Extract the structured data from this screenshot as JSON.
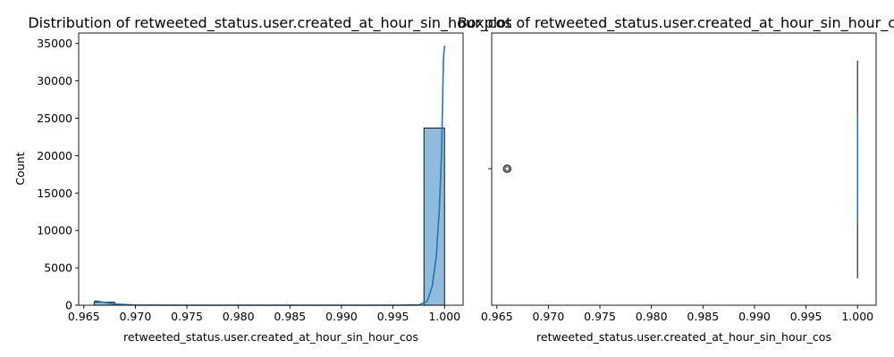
{
  "chart_data": [
    {
      "type": "histogram",
      "title": "Distribution of retweeted_status.user.created_at_hour_sin_hour_cos",
      "xlabel": "retweeted_status.user.created_at_hour_sin_hour_cos",
      "ylabel": "Count",
      "xlim": [
        0.9645,
        1.0018
      ],
      "ylim": [
        0,
        36400
      ],
      "xticks": [
        0.965,
        0.97,
        0.975,
        0.98,
        0.985,
        0.99,
        0.995,
        1.0
      ],
      "xtick_labels": [
        "0.965",
        "0.970",
        "0.975",
        "0.980",
        "0.985",
        "0.990",
        "0.995",
        "1.000"
      ],
      "yticks": [
        0,
        5000,
        10000,
        15000,
        20000,
        25000,
        30000,
        35000
      ],
      "ytick_labels": [
        "0",
        "5000",
        "10000",
        "15000",
        "20000",
        "25000",
        "30000",
        "35000"
      ],
      "bins": [
        {
          "x0": 0.966,
          "x1": 0.968,
          "count": 400
        },
        {
          "x0": 0.998,
          "x1": 1.0,
          "count": 23700
        }
      ],
      "kde": [
        [
          0.966,
          600
        ],
        [
          0.967,
          380
        ],
        [
          0.968,
          160
        ],
        [
          0.97,
          20
        ],
        [
          0.975,
          0
        ],
        [
          0.985,
          0
        ],
        [
          0.995,
          0
        ],
        [
          0.9975,
          30
        ],
        [
          0.9983,
          500
        ],
        [
          0.9988,
          2500
        ],
        [
          0.9992,
          6500
        ],
        [
          0.9995,
          13000
        ],
        [
          0.9997,
          20000
        ],
        [
          0.9998,
          26000
        ],
        [
          0.99985,
          30000
        ],
        [
          0.9999,
          33000
        ],
        [
          1.0,
          34700
        ]
      ],
      "bar_color": "#8fbcdd",
      "line_color": "#1f77b4"
    },
    {
      "type": "box",
      "title": "Boxplot of retweeted_status.user.created_at_hour_sin_hour_cos",
      "xlabel": "retweeted_status.user.created_at_hour_sin_hour_cos",
      "xlim": [
        0.9645,
        1.0018
      ],
      "xticks": [
        0.965,
        0.97,
        0.975,
        0.98,
        0.985,
        0.99,
        0.995,
        1.0
      ],
      "xtick_labels": [
        "0.965",
        "0.970",
        "0.975",
        "0.980",
        "0.985",
        "0.990",
        "0.995",
        "1.000"
      ],
      "box": {
        "q1": 1.0,
        "median": 1.0,
        "q3": 1.0,
        "whisker_low": 1.0,
        "whisker_high": 1.0
      },
      "outliers": [
        0.966
      ],
      "box_color": "#1f77b4"
    }
  ]
}
